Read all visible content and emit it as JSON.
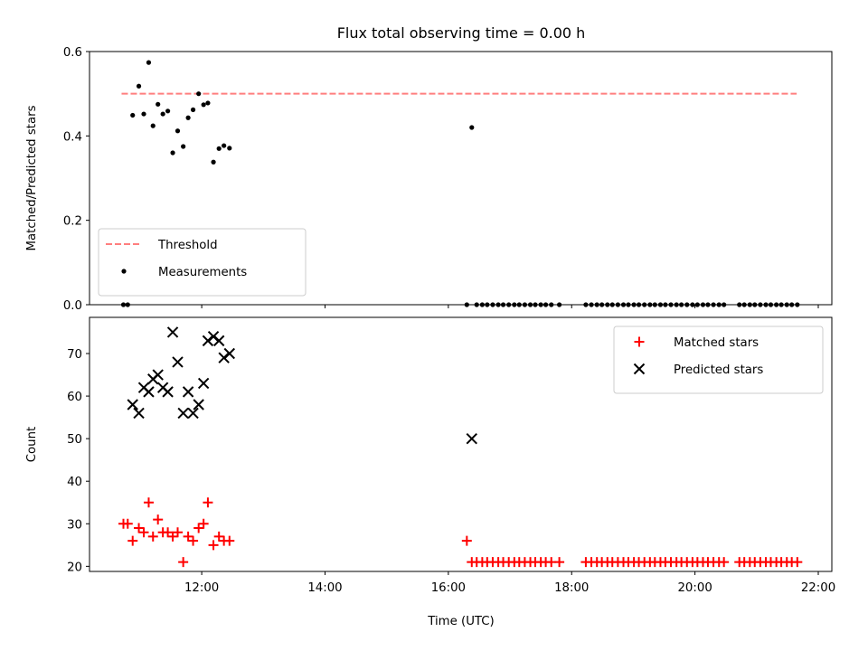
{
  "chart_data": {
    "title": "Flux total observing time = 0.00 h",
    "xlabel": "Time (UTC)",
    "x_range_hours": [
      10.18,
      22.22
    ],
    "x_ticks": [
      {
        "h": 12,
        "label": "12:00"
      },
      {
        "h": 14,
        "label": "14:00"
      },
      {
        "h": 16,
        "label": "16:00"
      },
      {
        "h": 18,
        "label": "18:00"
      },
      {
        "h": 20,
        "label": "20:00"
      },
      {
        "h": 22,
        "label": "22:00"
      }
    ],
    "panels": [
      {
        "type": "scatter",
        "ylabel": "Matched/Predicted stars",
        "ylim": [
          0,
          0.6
        ],
        "y_ticks": [
          {
            "v": 0,
            "label": "0.0"
          },
          {
            "v": 0.2,
            "label": "0.2"
          },
          {
            "v": 0.4,
            "label": "0.4"
          },
          {
            "v": 0.6,
            "label": "0.6"
          }
        ],
        "legend_position": "lower-left",
        "threshold": {
          "name": "Threshold",
          "value": 0.5,
          "x_start": 10.7,
          "x_end": 21.65,
          "color": "#ff7f7f"
        },
        "series": [
          {
            "name": "Measurements",
            "marker": "dot",
            "color": "#000000",
            "points": [
              [
                10.73,
                0.0
              ],
              [
                10.8,
                0.0
              ],
              [
                10.88,
                0.449
              ],
              [
                10.98,
                0.518
              ],
              [
                11.06,
                0.452
              ],
              [
                11.14,
                0.574
              ],
              [
                11.21,
                0.424
              ],
              [
                11.29,
                0.475
              ],
              [
                11.37,
                0.452
              ],
              [
                11.45,
                0.459
              ],
              [
                11.53,
                0.36
              ],
              [
                11.61,
                0.412
              ],
              [
                11.7,
                0.375
              ],
              [
                11.78,
                0.443
              ],
              [
                11.86,
                0.462
              ],
              [
                11.95,
                0.5
              ],
              [
                12.03,
                0.474
              ],
              [
                12.1,
                0.478
              ],
              [
                12.19,
                0.338
              ],
              [
                12.28,
                0.37
              ],
              [
                12.36,
                0.377
              ],
              [
                12.45,
                0.371
              ],
              [
                16.3,
                0.0
              ],
              [
                16.38,
                0.42
              ],
              [
                16.46,
                0.0
              ],
              [
                16.55,
                0.0
              ],
              [
                16.63,
                0.0
              ],
              [
                16.72,
                0.0
              ],
              [
                16.81,
                0.0
              ],
              [
                16.89,
                0.0
              ],
              [
                16.98,
                0.0
              ],
              [
                17.07,
                0.0
              ],
              [
                17.15,
                0.0
              ],
              [
                17.24,
                0.0
              ],
              [
                17.33,
                0.0
              ],
              [
                17.41,
                0.0
              ],
              [
                17.5,
                0.0
              ],
              [
                17.58,
                0.0
              ],
              [
                17.67,
                0.0
              ],
              [
                17.8,
                0.0
              ],
              [
                18.23,
                0.0
              ],
              [
                18.32,
                0.0
              ],
              [
                18.41,
                0.0
              ],
              [
                18.49,
                0.0
              ],
              [
                18.58,
                0.0
              ],
              [
                18.66,
                0.0
              ],
              [
                18.75,
                0.0
              ],
              [
                18.84,
                0.0
              ],
              [
                18.92,
                0.0
              ],
              [
                19.01,
                0.0
              ],
              [
                19.09,
                0.0
              ],
              [
                19.18,
                0.0
              ],
              [
                19.27,
                0.0
              ],
              [
                19.35,
                0.0
              ],
              [
                19.44,
                0.0
              ],
              [
                19.52,
                0.0
              ],
              [
                19.61,
                0.0
              ],
              [
                19.7,
                0.0
              ],
              [
                19.78,
                0.0
              ],
              [
                19.87,
                0.0
              ],
              [
                19.96,
                0.0
              ],
              [
                20.04,
                0.0
              ],
              [
                20.13,
                0.0
              ],
              [
                20.21,
                0.0
              ],
              [
                20.3,
                0.0
              ],
              [
                20.39,
                0.0
              ],
              [
                20.47,
                0.0
              ],
              [
                20.72,
                0.0
              ],
              [
                20.8,
                0.0
              ],
              [
                20.89,
                0.0
              ],
              [
                20.97,
                0.0
              ],
              [
                21.06,
                0.0
              ],
              [
                21.15,
                0.0
              ],
              [
                21.23,
                0.0
              ],
              [
                21.32,
                0.0
              ],
              [
                21.4,
                0.0
              ],
              [
                21.49,
                0.0
              ],
              [
                21.57,
                0.0
              ],
              [
                21.66,
                0.0
              ]
            ]
          }
        ]
      },
      {
        "type": "scatter",
        "ylabel": "Count",
        "ylim": [
          18.8,
          78.5
        ],
        "y_ticks": [
          {
            "v": 20,
            "label": "20"
          },
          {
            "v": 30,
            "label": "30"
          },
          {
            "v": 40,
            "label": "40"
          },
          {
            "v": 50,
            "label": "50"
          },
          {
            "v": 60,
            "label": "60"
          },
          {
            "v": 70,
            "label": "70"
          }
        ],
        "legend_position": "upper-right",
        "series": [
          {
            "name": "Matched stars",
            "marker": "plus",
            "color": "#ff0000",
            "points": [
              [
                10.73,
                30
              ],
              [
                10.8,
                30
              ],
              [
                10.88,
                26
              ],
              [
                10.98,
                29
              ],
              [
                11.06,
                28
              ],
              [
                11.14,
                35
              ],
              [
                11.21,
                27
              ],
              [
                11.29,
                31
              ],
              [
                11.37,
                28
              ],
              [
                11.45,
                28
              ],
              [
                11.53,
                27
              ],
              [
                11.61,
                28
              ],
              [
                11.7,
                21
              ],
              [
                11.78,
                27
              ],
              [
                11.86,
                26
              ],
              [
                11.95,
                29
              ],
              [
                12.03,
                30
              ],
              [
                12.1,
                35
              ],
              [
                12.19,
                25
              ],
              [
                12.28,
                27
              ],
              [
                12.36,
                26
              ],
              [
                12.45,
                26
              ],
              [
                16.3,
                26
              ],
              [
                16.38,
                21
              ],
              [
                16.46,
                21
              ],
              [
                16.55,
                21
              ],
              [
                16.63,
                21
              ],
              [
                16.72,
                21
              ],
              [
                16.81,
                21
              ],
              [
                16.89,
                21
              ],
              [
                16.98,
                21
              ],
              [
                17.07,
                21
              ],
              [
                17.15,
                21
              ],
              [
                17.24,
                21
              ],
              [
                17.33,
                21
              ],
              [
                17.41,
                21
              ],
              [
                17.5,
                21
              ],
              [
                17.58,
                21
              ],
              [
                17.67,
                21
              ],
              [
                17.8,
                21
              ],
              [
                18.23,
                21
              ],
              [
                18.32,
                21
              ],
              [
                18.41,
                21
              ],
              [
                18.49,
                21
              ],
              [
                18.58,
                21
              ],
              [
                18.66,
                21
              ],
              [
                18.75,
                21
              ],
              [
                18.84,
                21
              ],
              [
                18.92,
                21
              ],
              [
                19.01,
                21
              ],
              [
                19.09,
                21
              ],
              [
                19.18,
                21
              ],
              [
                19.27,
                21
              ],
              [
                19.35,
                21
              ],
              [
                19.44,
                21
              ],
              [
                19.52,
                21
              ],
              [
                19.61,
                21
              ],
              [
                19.7,
                21
              ],
              [
                19.78,
                21
              ],
              [
                19.87,
                21
              ],
              [
                19.96,
                21
              ],
              [
                20.04,
                21
              ],
              [
                20.13,
                21
              ],
              [
                20.21,
                21
              ],
              [
                20.3,
                21
              ],
              [
                20.39,
                21
              ],
              [
                20.47,
                21
              ],
              [
                20.72,
                21
              ],
              [
                20.8,
                21
              ],
              [
                20.89,
                21
              ],
              [
                20.97,
                21
              ],
              [
                21.06,
                21
              ],
              [
                21.15,
                21
              ],
              [
                21.23,
                21
              ],
              [
                21.32,
                21
              ],
              [
                21.4,
                21
              ],
              [
                21.49,
                21
              ],
              [
                21.57,
                21
              ],
              [
                21.66,
                21
              ]
            ]
          },
          {
            "name": "Predicted stars",
            "marker": "x",
            "color": "#000000",
            "points": [
              [
                10.88,
                58
              ],
              [
                10.98,
                56
              ],
              [
                11.06,
                62
              ],
              [
                11.14,
                61
              ],
              [
                11.21,
                64
              ],
              [
                11.29,
                65
              ],
              [
                11.37,
                62
              ],
              [
                11.45,
                61
              ],
              [
                11.53,
                75
              ],
              [
                11.61,
                68
              ],
              [
                11.7,
                56
              ],
              [
                11.78,
                61
              ],
              [
                11.86,
                56
              ],
              [
                11.95,
                58
              ],
              [
                12.03,
                63
              ],
              [
                12.1,
                73
              ],
              [
                12.19,
                74
              ],
              [
                12.28,
                73
              ],
              [
                12.36,
                69
              ],
              [
                12.45,
                70
              ],
              [
                16.38,
                50
              ]
            ]
          }
        ]
      }
    ]
  }
}
